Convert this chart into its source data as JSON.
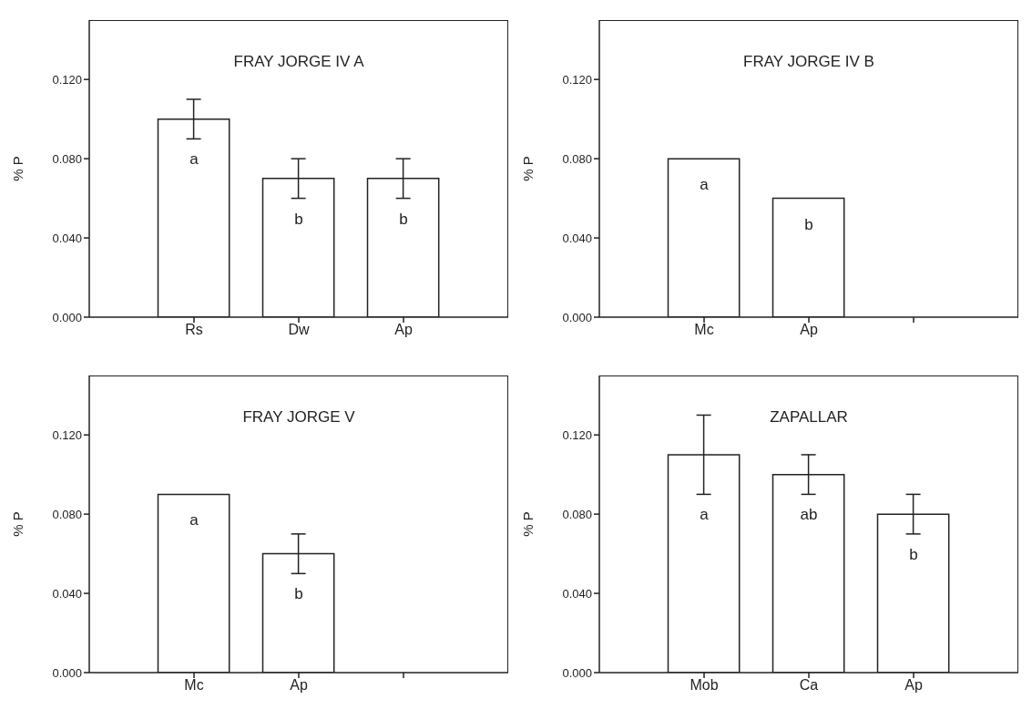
{
  "chart_data": [
    {
      "type": "bar",
      "title": "FRAY JORGE IV A",
      "ylabel": "% P",
      "categories": [
        "Rs",
        "Dw",
        "Ap"
      ],
      "values": [
        0.1,
        0.07,
        0.07
      ],
      "errors": [
        0.01,
        0.01,
        0.01
      ],
      "color": "#ffffff",
      "ylim": [
        0,
        0.15
      ],
      "yticks": [
        {
          "value": 0,
          "label": "0.000"
        },
        {
          "value": 0.04,
          "label": "0.040"
        },
        {
          "value": 0.08,
          "label": "0.080"
        },
        {
          "value": 0.12,
          "label": "0.120"
        }
      ],
      "annotations": [
        "a",
        "b",
        "b"
      ]
    },
    {
      "type": "bar",
      "title": "FRAY JORGE IV B",
      "ylabel": "% P",
      "categories": [
        "Mc",
        "Ap",
        null
      ],
      "values": [
        0.08,
        0.06,
        null
      ],
      "color": "#ffffff",
      "ylim": [
        0,
        0.15
      ],
      "yticks": [
        {
          "value": 0,
          "label": "0.000"
        },
        {
          "value": 0.04,
          "label": "0.040"
        },
        {
          "value": 0.08,
          "label": "0.080"
        },
        {
          "value": 0.12,
          "label": "0.120"
        }
      ],
      "annotations": [
        "a",
        "b"
      ]
    },
    {
      "type": "bar",
      "title": "FRAY JORGE V",
      "ylabel": "% P",
      "categories": [
        "Mc",
        "Ap",
        null
      ],
      "values": [
        0.09,
        0.06,
        null
      ],
      "errors": [
        null,
        0.01,
        null
      ],
      "color": "#ffffff",
      "ylim": [
        0,
        0.15
      ],
      "yticks": [
        {
          "value": 0,
          "label": "0.000"
        },
        {
          "value": 0.04,
          "label": "0.040"
        },
        {
          "value": 0.08,
          "label": "0.080"
        },
        {
          "value": 0.12,
          "label": "0.120"
        }
      ],
      "annotations": [
        "a",
        "b"
      ]
    },
    {
      "type": "bar",
      "title": "ZAPALLAR",
      "ylabel": "% P",
      "categories": [
        "Mob",
        "Ca",
        "Ap"
      ],
      "values": [
        0.11,
        0.1,
        0.08
      ],
      "errors": [
        0.02,
        0.01,
        0.01
      ],
      "color": "#ffffff",
      "ylim": [
        0,
        0.15
      ],
      "yticks": [
        {
          "value": 0,
          "label": "0.000"
        },
        {
          "value": 0.04,
          "label": "0.040"
        },
        {
          "value": 0.08,
          "label": "0.080"
        },
        {
          "value": 0.12,
          "label": "0.120"
        }
      ],
      "annotations": [
        "a",
        "ab",
        "b"
      ]
    }
  ]
}
